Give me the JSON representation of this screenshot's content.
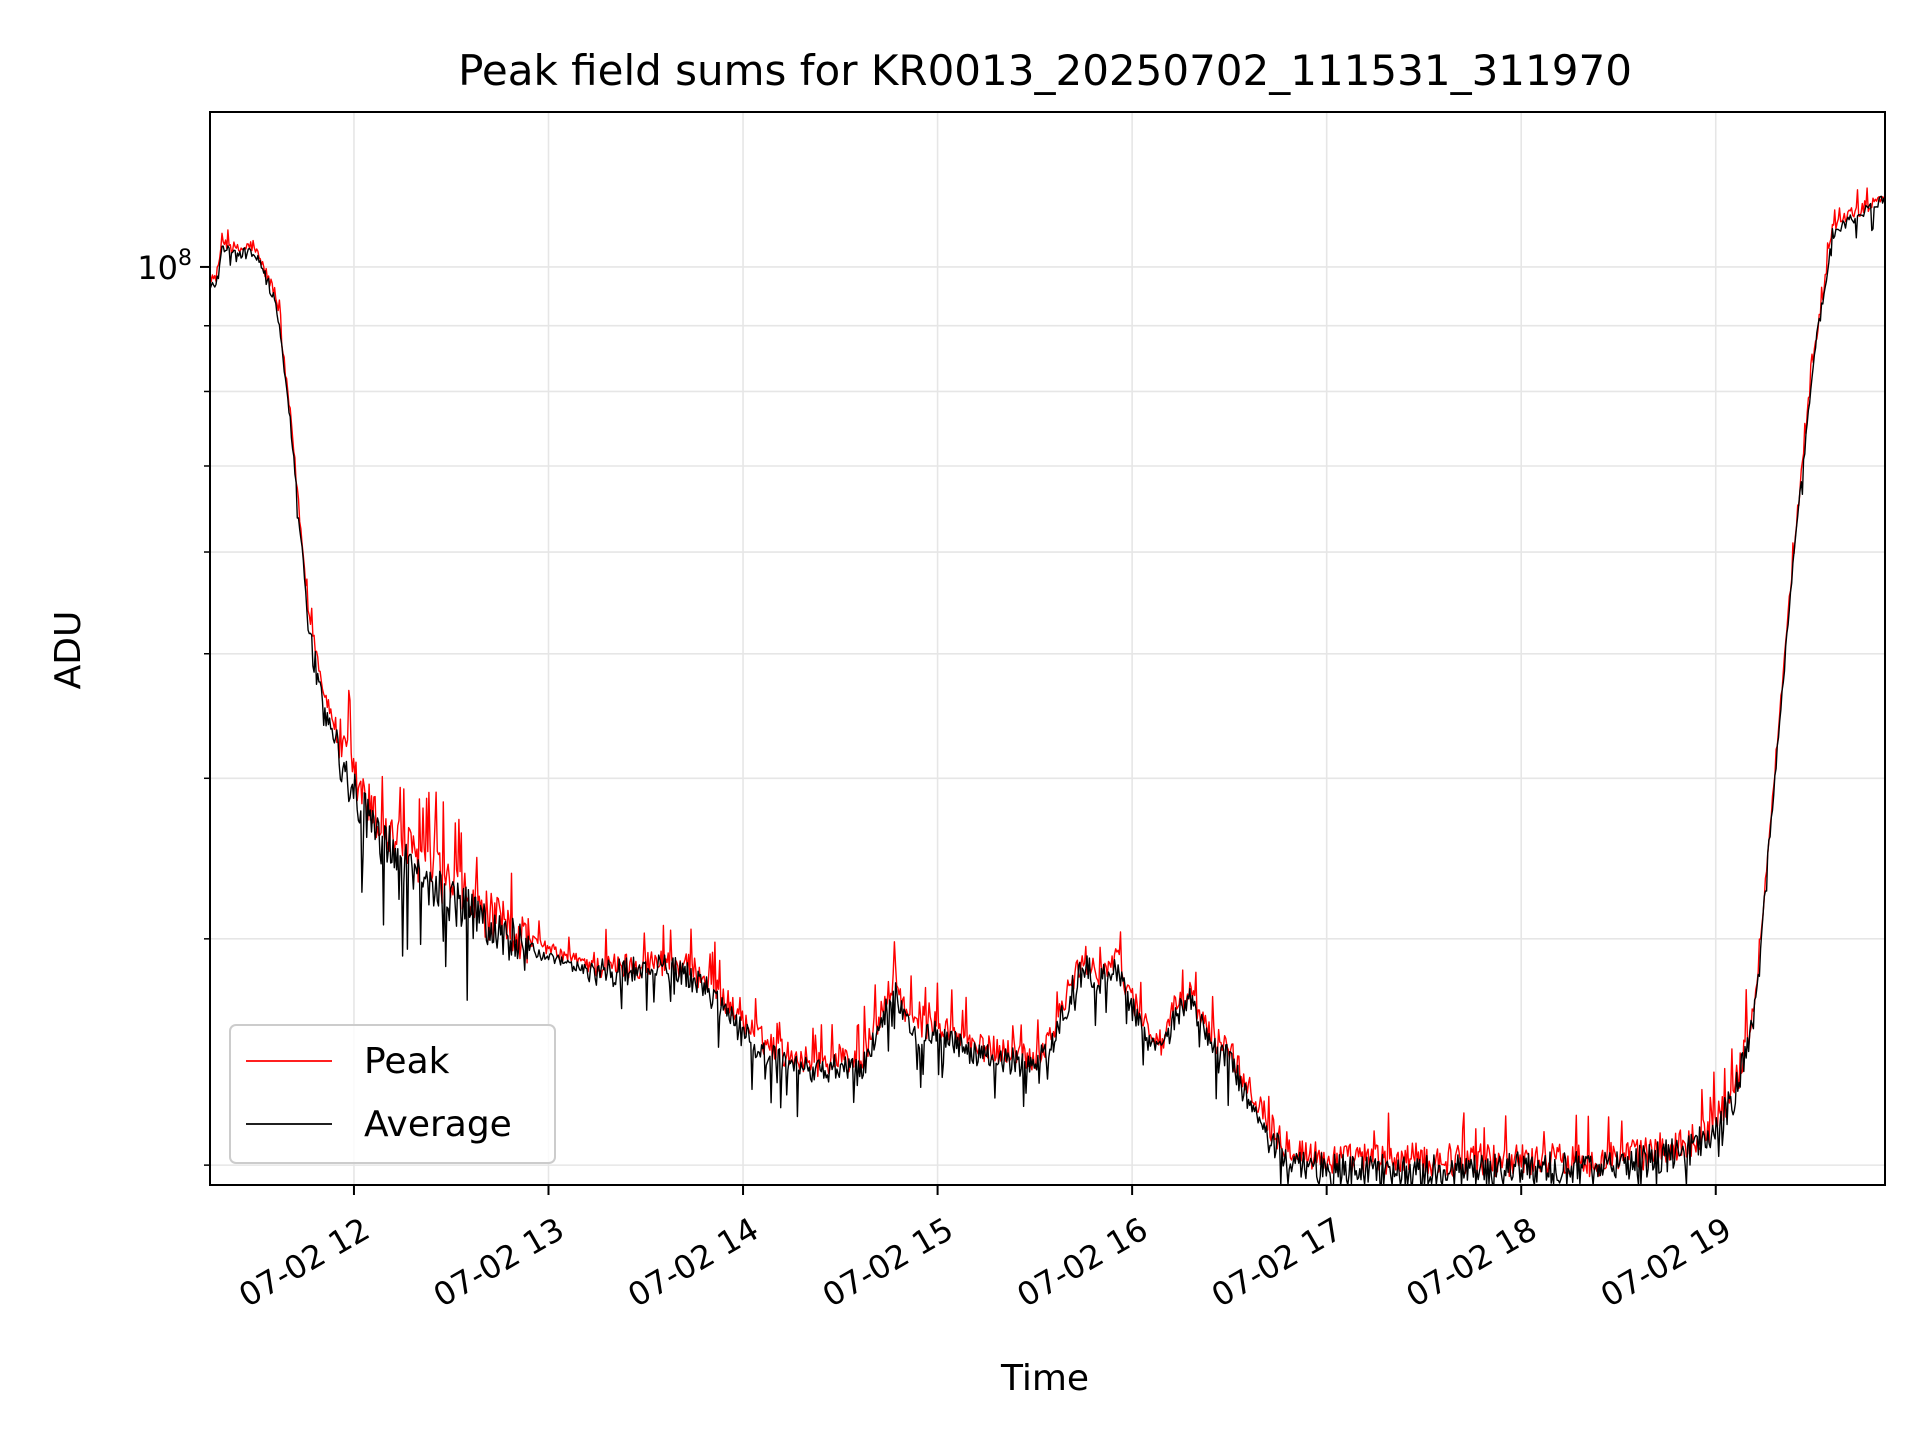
{
  "chart_data": {
    "type": "line",
    "title": "Peak field sums for KR0013_20250702_111531_311970",
    "xlabel": "Time",
    "ylabel": "ADU",
    "yscale": "log",
    "y_major_tick_label": "10",
    "y_major_tick_exponent": "8",
    "x_tick_labels": [
      "07-02 12",
      "07-02 13",
      "07-02 14",
      "07-02 15",
      "07-02 16",
      "07-02 17",
      "07-02 18",
      "07-02 19"
    ],
    "x_tick_hours": [
      12,
      13,
      14,
      15,
      16,
      17,
      18,
      19
    ],
    "xlim_hours": [
      11.26,
      19.87
    ],
    "ylim": [
      19300000,
      132000000
    ],
    "grid": true,
    "legend_position": "lower left",
    "series": [
      {
        "name": "Peak",
        "color": "#ff0000",
        "x_hours": [
          11.26,
          11.3,
          11.32,
          11.36,
          11.4,
          11.48,
          11.52,
          11.6,
          11.68,
          11.76,
          11.84,
          11.92,
          12.0,
          12.08,
          12.14,
          12.2,
          12.3,
          12.4,
          12.5,
          12.6,
          12.7,
          12.8,
          12.9,
          13.0,
          13.1,
          13.2,
          13.3,
          13.4,
          13.5,
          13.6,
          13.7,
          13.8,
          13.9,
          14.0,
          14.1,
          14.2,
          14.3,
          14.4,
          14.5,
          14.6,
          14.7,
          14.78,
          14.85,
          14.92,
          15.0,
          15.1,
          15.2,
          15.3,
          15.4,
          15.5,
          15.6,
          15.7,
          15.76,
          15.83,
          15.92,
          16.0,
          16.08,
          16.15,
          16.22,
          16.3,
          16.4,
          16.5,
          16.6,
          16.7,
          16.8,
          16.9,
          17.0,
          17.2,
          17.4,
          17.6,
          17.8,
          18.0,
          18.2,
          18.4,
          18.6,
          18.8,
          18.9,
          19.0,
          19.1,
          19.2,
          19.3,
          19.4,
          19.5,
          19.6,
          19.7,
          19.8,
          19.87
        ],
        "y": [
          97000000,
          99000000,
          105000000,
          104000000,
          103000000,
          104000000,
          101000000,
          95000000,
          75000000,
          55000000,
          47000000,
          43000000,
          40000000,
          38000000,
          36500000,
          36000000,
          35000000,
          34000000,
          33000000,
          32000000,
          31200000,
          30500000,
          30000000,
          29500000,
          29000000,
          28800000,
          28500000,
          28600000,
          28700000,
          28800000,
          28600000,
          28000000,
          27000000,
          25800000,
          25000000,
          24500000,
          24200000,
          24000000,
          24300000,
          24000000,
          26000000,
          28000000,
          26000000,
          25500000,
          25800000,
          25200000,
          24700000,
          24600000,
          24500000,
          24200000,
          25500000,
          28000000,
          28900000,
          28200000,
          28900000,
          27000000,
          25600000,
          24800000,
          26500000,
          27200000,
          25200000,
          24700000,
          22800000,
          21500000,
          20800000,
          20400000,
          20200000,
          20200000,
          20200000,
          20200000,
          20200000,
          20200000,
          20200000,
          20200000,
          20400000,
          20700000,
          21000000,
          21700000,
          23000000,
          26500000,
          40000000,
          60000000,
          85000000,
          107000000,
          110000000,
          112000000,
          114000000
        ]
      },
      {
        "name": "Average",
        "color": "#000000",
        "x_hours": [
          11.26,
          11.3,
          11.32,
          11.36,
          11.4,
          11.48,
          11.52,
          11.6,
          11.68,
          11.76,
          11.84,
          11.92,
          12.0,
          12.08,
          12.14,
          12.2,
          12.3,
          12.4,
          12.5,
          12.6,
          12.7,
          12.8,
          12.9,
          13.0,
          13.1,
          13.2,
          13.3,
          13.4,
          13.5,
          13.6,
          13.7,
          13.8,
          13.9,
          14.0,
          14.1,
          14.2,
          14.3,
          14.4,
          14.5,
          14.6,
          14.7,
          14.78,
          14.85,
          14.92,
          15.0,
          15.1,
          15.2,
          15.3,
          15.4,
          15.5,
          15.6,
          15.7,
          15.76,
          15.83,
          15.92,
          16.0,
          16.08,
          16.15,
          16.22,
          16.3,
          16.4,
          16.5,
          16.6,
          16.7,
          16.8,
          16.9,
          17.0,
          17.2,
          17.4,
          17.6,
          17.8,
          18.0,
          18.2,
          18.4,
          18.6,
          18.8,
          18.9,
          19.0,
          19.1,
          19.2,
          19.3,
          19.4,
          19.5,
          19.6,
          19.7,
          19.8,
          19.87
        ],
        "y": [
          96000000,
          98000000,
          104000000,
          103000000,
          102000000,
          103000000,
          100000000,
          94000000,
          74000000,
          54000000,
          46000000,
          42000000,
          39000000,
          37000000,
          35500000,
          35000000,
          34000000,
          33000000,
          32200000,
          31300000,
          30600000,
          30000000,
          29500000,
          29000000,
          28600000,
          28400000,
          28200000,
          28300000,
          28400000,
          28500000,
          28200000,
          27500000,
          26500000,
          25300000,
          24500000,
          24000000,
          23700000,
          23600000,
          23900000,
          23600000,
          25500000,
          27600000,
          25600000,
          25100000,
          25300000,
          24800000,
          24300000,
          24200000,
          24100000,
          23900000,
          25100000,
          27600000,
          28500000,
          27800000,
          28500000,
          26600000,
          25200000,
          24400000,
          26100000,
          26800000,
          24800000,
          24300000,
          22400000,
          21100000,
          20400000,
          20000000,
          19800000,
          19800000,
          19800000,
          19800000,
          19800000,
          19900000,
          19900000,
          19900000,
          20100000,
          20400000,
          20700000,
          21400000,
          22700000,
          26200000,
          39500000,
          59000000,
          84000000,
          106000000,
          109000000,
          111000000,
          113000000
        ]
      }
    ]
  }
}
